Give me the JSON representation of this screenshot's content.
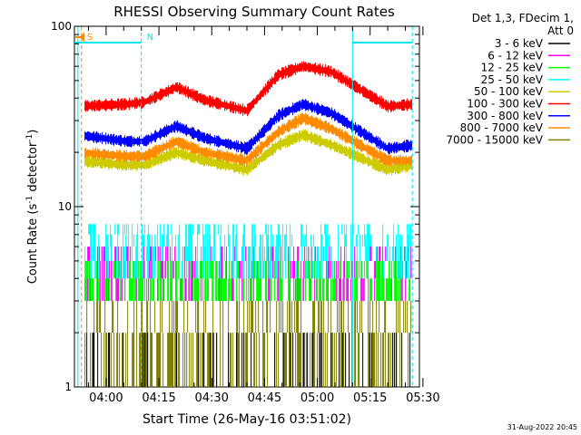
{
  "chart_data": {
    "type": "line",
    "title": "RHESSI Observing Summary Count Rates",
    "xlabel": "Start Time (26-May-16 03:51:02)",
    "ylabel_main": "Count Rate (s",
    "ylabel_sup": "-1",
    "ylabel_tail": " detector",
    "ylabel_sup2": "-1",
    "ylabel_end": ")",
    "y_scale": "log",
    "ylim": [
      1,
      100
    ],
    "x_range_minutes": [
      "03:51",
      "05:29"
    ],
    "x_ticks": [
      "04:00",
      "04:15",
      "04:30",
      "04:45",
      "05:00",
      "05:15",
      "05:30"
    ],
    "y_ticks": [
      "1",
      "10",
      "100"
    ],
    "legend_header": [
      "Det 1,3, FDecim 1,",
      "Att 0"
    ],
    "markers": [
      {
        "label": "S",
        "color": "#ff8c00",
        "time": "03:53"
      },
      {
        "label": "N",
        "color": "#00e5ee",
        "time": "04:10"
      }
    ],
    "series": [
      {
        "name": "3 - 6 keV",
        "color": "#000000"
      },
      {
        "name": "6 - 12 keV",
        "color": "#ff00ff"
      },
      {
        "name": "12 - 25 keV",
        "color": "#00ff00"
      },
      {
        "name": "25 - 50 keV",
        "color": "#00ffff"
      },
      {
        "name": "50 - 100 keV",
        "color": "#cccc00"
      },
      {
        "name": "100 - 300 keV",
        "color": "#ff0000"
      },
      {
        "name": "300 - 800 keV",
        "color": "#0000ff"
      },
      {
        "name": "800 - 7000 keV",
        "color": "#ff8c00"
      },
      {
        "name": "7000 - 15000 keV",
        "color": "#808000"
      }
    ],
    "envelopes": [
      {
        "series": "100 - 300 keV",
        "x_min": [
          0,
          14,
          19,
          28,
          36,
          48,
          57,
          64,
          72,
          88,
          96
        ],
        "y": [
          36,
          37,
          38,
          46,
          39,
          34,
          54,
          60,
          56,
          36,
          37
        ]
      },
      {
        "series": "300 - 800 keV",
        "x_min": [
          0,
          14,
          19,
          28,
          36,
          48,
          57,
          64,
          72,
          88,
          96
        ],
        "y": [
          25,
          23,
          23,
          28,
          24,
          21,
          32,
          37,
          33,
          21,
          22
        ]
      },
      {
        "series": "800 - 7000 keV",
        "x_min": [
          0,
          14,
          19,
          28,
          36,
          48,
          57,
          64,
          72,
          88,
          96
        ],
        "y": [
          20,
          19,
          19,
          23,
          20,
          18,
          26,
          31,
          27,
          18,
          18
        ]
      },
      {
        "series": "50 - 100 keV",
        "x_min": [
          0,
          14,
          19,
          28,
          36,
          48,
          57,
          64,
          72,
          88,
          96
        ],
        "y": [
          18,
          17,
          17,
          20,
          18,
          16,
          22,
          25,
          22,
          16,
          17
        ]
      }
    ]
  },
  "footer_date": "31-Aug-2022 20:45"
}
